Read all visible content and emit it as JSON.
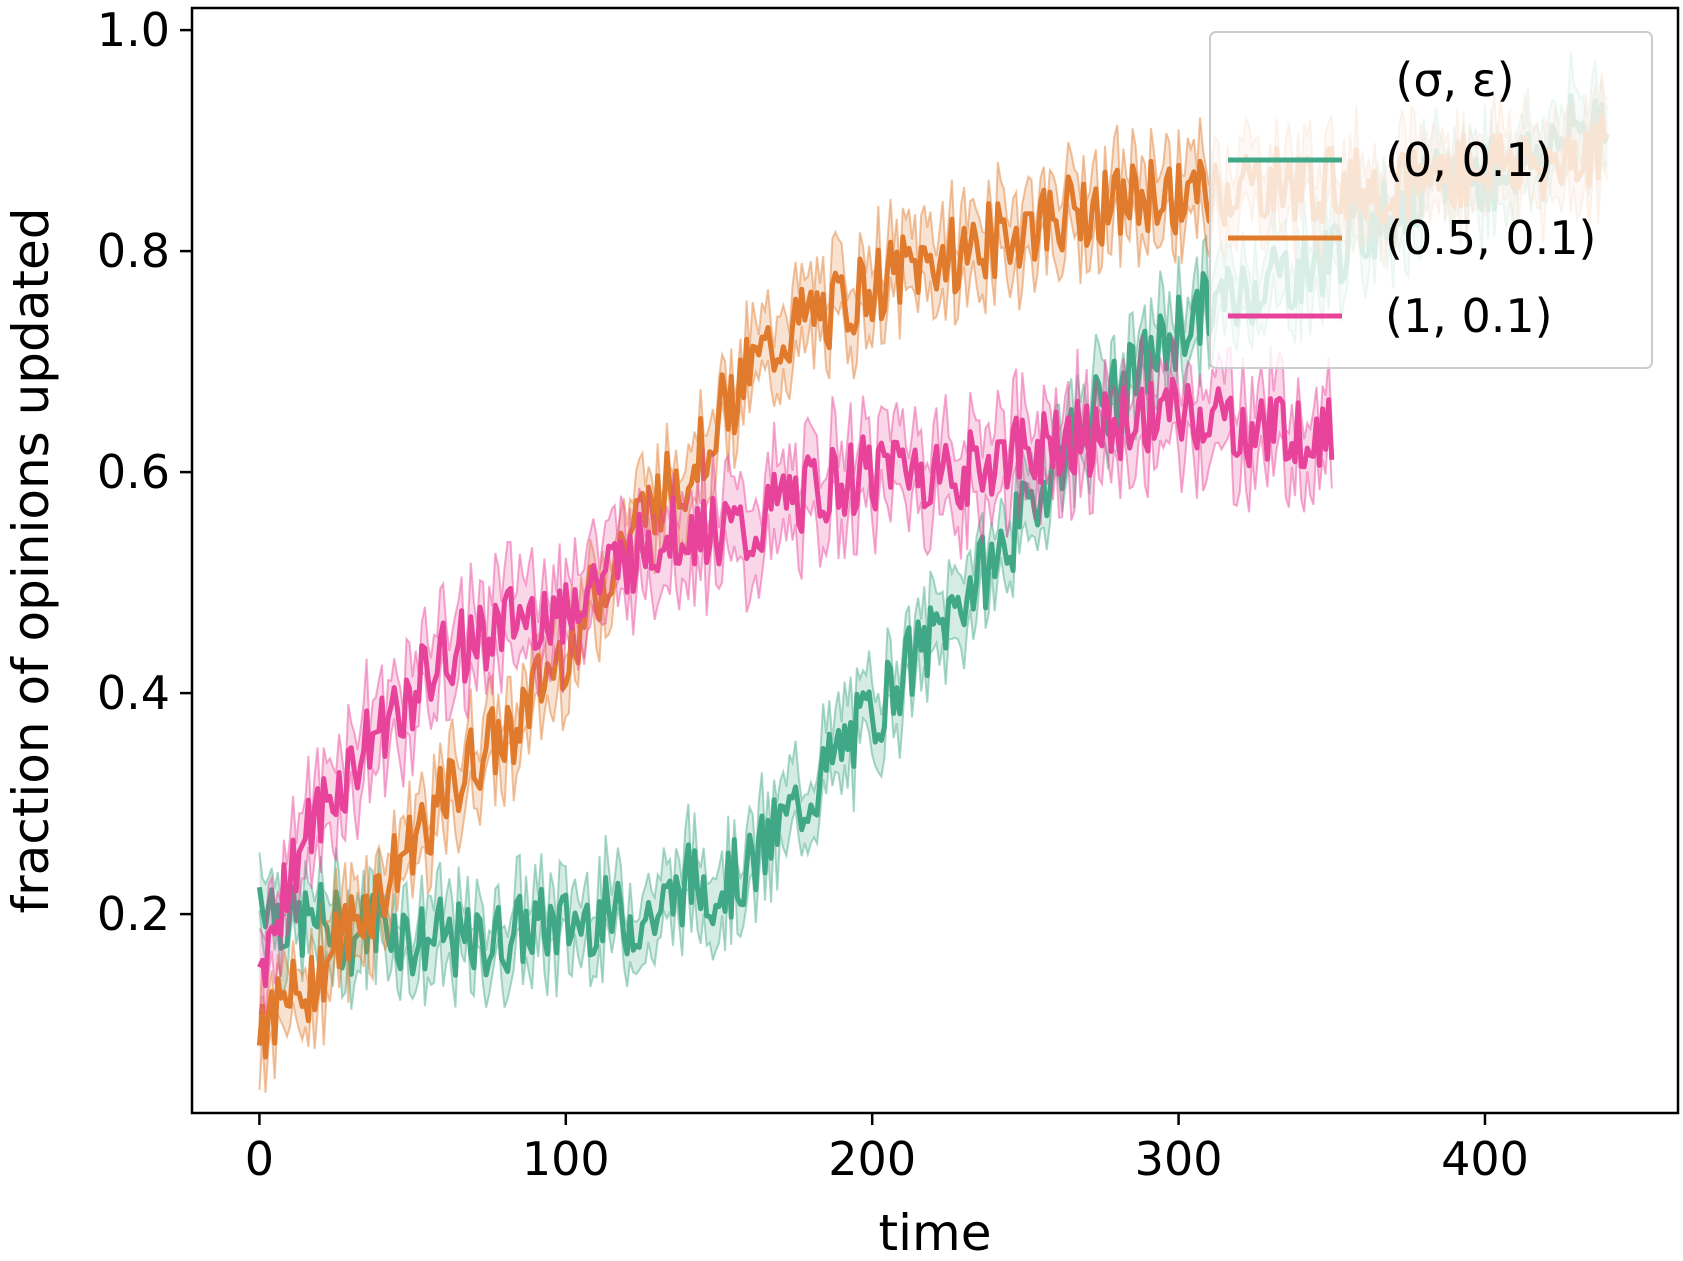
{
  "chart_data": {
    "type": "line",
    "xlabel": "time",
    "ylabel": "fraction of opinions updated",
    "xlim": [
      -22,
      463
    ],
    "ylim": [
      0.02,
      1.02
    ],
    "xticks": [
      0,
      100,
      200,
      300,
      400
    ],
    "xtick_labels": [
      "0",
      "100",
      "200",
      "300",
      "400"
    ],
    "yticks": [
      0.2,
      0.4,
      0.6,
      0.8,
      1.0
    ],
    "ytick_labels": [
      "0.2",
      "0.4",
      "0.6",
      "0.8",
      "1.0"
    ],
    "grid": false,
    "legend": {
      "title": "(σ, ε)",
      "placement": "top-right"
    },
    "series": [
      {
        "name": "(0, 0.1)",
        "color": "#40a886",
        "band": 0.03,
        "points": [
          [
            0,
            0.225
          ],
          [
            10,
            0.19
          ],
          [
            20,
            0.195
          ],
          [
            30,
            0.18
          ],
          [
            40,
            0.2
          ],
          [
            50,
            0.175
          ],
          [
            60,
            0.18
          ],
          [
            70,
            0.17
          ],
          [
            80,
            0.18
          ],
          [
            90,
            0.19
          ],
          [
            100,
            0.19
          ],
          [
            110,
            0.2
          ],
          [
            120,
            0.195
          ],
          [
            130,
            0.2
          ],
          [
            140,
            0.23
          ],
          [
            150,
            0.225
          ],
          [
            160,
            0.24
          ],
          [
            170,
            0.28
          ],
          [
            180,
            0.31
          ],
          [
            190,
            0.35
          ],
          [
            200,
            0.38
          ],
          [
            210,
            0.42
          ],
          [
            220,
            0.45
          ],
          [
            230,
            0.49
          ],
          [
            240,
            0.52
          ],
          [
            250,
            0.56
          ],
          [
            260,
            0.61
          ],
          [
            270,
            0.65
          ],
          [
            280,
            0.67
          ],
          [
            290,
            0.7
          ],
          [
            300,
            0.73
          ],
          [
            310,
            0.75
          ],
          [
            320,
            0.76
          ],
          [
            330,
            0.78
          ],
          [
            340,
            0.78
          ],
          [
            350,
            0.8
          ],
          [
            360,
            0.82
          ],
          [
            370,
            0.84
          ],
          [
            380,
            0.85
          ],
          [
            390,
            0.87
          ],
          [
            400,
            0.87
          ],
          [
            410,
            0.88
          ],
          [
            420,
            0.89
          ],
          [
            430,
            0.91
          ],
          [
            440,
            0.93
          ]
        ]
      },
      {
        "name": "(0.5, 0.1)",
        "color": "#e07a2c",
        "band": 0.03,
        "points": [
          [
            0,
            0.1
          ],
          [
            10,
            0.12
          ],
          [
            20,
            0.15
          ],
          [
            30,
            0.19
          ],
          [
            40,
            0.22
          ],
          [
            50,
            0.27
          ],
          [
            60,
            0.3
          ],
          [
            70,
            0.34
          ],
          [
            80,
            0.36
          ],
          [
            90,
            0.4
          ],
          [
            100,
            0.44
          ],
          [
            110,
            0.49
          ],
          [
            120,
            0.54
          ],
          [
            130,
            0.58
          ],
          [
            140,
            0.6
          ],
          [
            150,
            0.65
          ],
          [
            160,
            0.69
          ],
          [
            170,
            0.72
          ],
          [
            180,
            0.74
          ],
          [
            190,
            0.75
          ],
          [
            200,
            0.77
          ],
          [
            210,
            0.78
          ],
          [
            220,
            0.79
          ],
          [
            230,
            0.8
          ],
          [
            240,
            0.81
          ],
          [
            250,
            0.82
          ],
          [
            260,
            0.83
          ],
          [
            270,
            0.84
          ],
          [
            280,
            0.84
          ],
          [
            290,
            0.85
          ],
          [
            300,
            0.85
          ],
          [
            310,
            0.85
          ],
          [
            320,
            0.86
          ],
          [
            330,
            0.86
          ],
          [
            340,
            0.86
          ],
          [
            350,
            0.86
          ],
          [
            360,
            0.86
          ],
          [
            370,
            0.86
          ],
          [
            380,
            0.87
          ],
          [
            390,
            0.87
          ],
          [
            400,
            0.88
          ],
          [
            410,
            0.88
          ],
          [
            420,
            0.88
          ],
          [
            430,
            0.89
          ],
          [
            440,
            0.89
          ]
        ]
      },
      {
        "name": "(1, 0.1)",
        "color": "#e8439a",
        "band": 0.035,
        "points": [
          [
            0,
            0.15
          ],
          [
            10,
            0.24
          ],
          [
            20,
            0.29
          ],
          [
            30,
            0.33
          ],
          [
            40,
            0.37
          ],
          [
            50,
            0.4
          ],
          [
            60,
            0.43
          ],
          [
            70,
            0.45
          ],
          [
            80,
            0.46
          ],
          [
            90,
            0.47
          ],
          [
            100,
            0.48
          ],
          [
            110,
            0.5
          ],
          [
            120,
            0.52
          ],
          [
            130,
            0.54
          ],
          [
            140,
            0.55
          ],
          [
            150,
            0.55
          ],
          [
            160,
            0.54
          ],
          [
            170,
            0.57
          ],
          [
            180,
            0.58
          ],
          [
            190,
            0.59
          ],
          [
            200,
            0.6
          ],
          [
            210,
            0.61
          ],
          [
            220,
            0.6
          ],
          [
            230,
            0.6
          ],
          [
            240,
            0.61
          ],
          [
            250,
            0.62
          ],
          [
            260,
            0.63
          ],
          [
            270,
            0.63
          ],
          [
            280,
            0.64
          ],
          [
            290,
            0.65
          ],
          [
            300,
            0.65
          ],
          [
            310,
            0.65
          ],
          [
            320,
            0.64
          ],
          [
            330,
            0.64
          ],
          [
            340,
            0.64
          ],
          [
            350,
            0.63
          ]
        ]
      }
    ]
  }
}
